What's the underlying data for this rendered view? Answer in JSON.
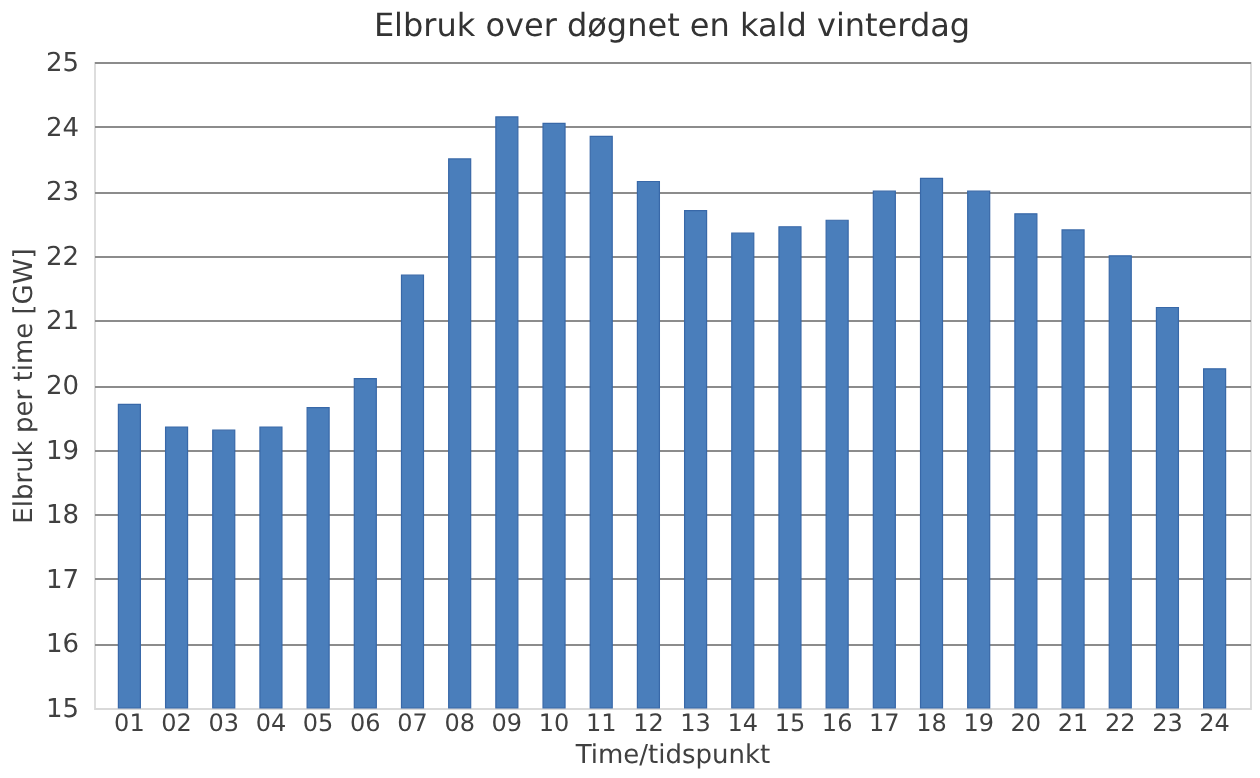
{
  "chart_data": {
    "type": "bar",
    "title": "Elbruk over døgnet en kald vinterdag",
    "xlabel": "Time/tidspunkt",
    "ylabel": "Elbruk per time [GW]",
    "categories": [
      "01",
      "02",
      "03",
      "04",
      "05",
      "06",
      "07",
      "08",
      "09",
      "10",
      "11",
      "12",
      "13",
      "14",
      "15",
      "16",
      "17",
      "18",
      "19",
      "20",
      "21",
      "22",
      "23",
      "24"
    ],
    "values": [
      19.7,
      19.35,
      19.3,
      19.35,
      19.65,
      20.1,
      21.7,
      23.5,
      24.15,
      24.05,
      23.85,
      23.15,
      22.7,
      22.35,
      22.45,
      22.55,
      23.0,
      23.2,
      23.0,
      22.65,
      22.4,
      22.0,
      21.2,
      20.25
    ],
    "color": "#4a7ebb",
    "ylim": [
      15,
      25
    ],
    "yticks": [
      15,
      16,
      17,
      18,
      19,
      20,
      21,
      22,
      23,
      24,
      25
    ],
    "grid": "y",
    "legend": false
  }
}
